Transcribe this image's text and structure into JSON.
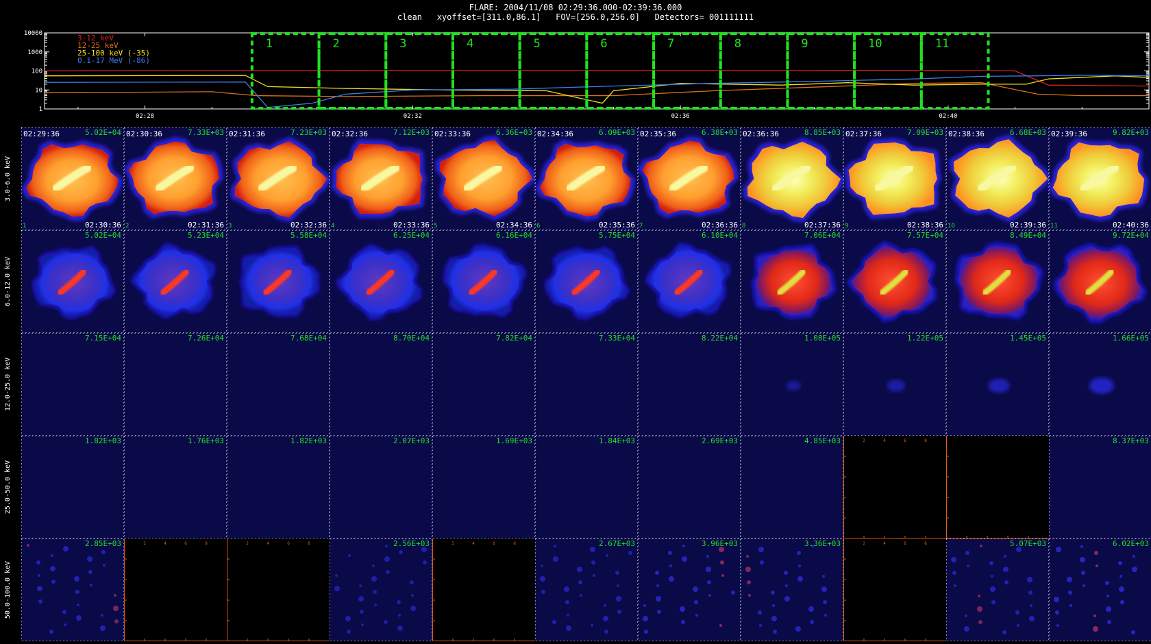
{
  "header": {
    "line1": "FLARE: 2004/11/08 02:29:36.000-02:39:36.000",
    "line2": "clean   xyoffset=[311.0,86.1]   FOV=[256.0,256.0]   Detectors= 001111111"
  },
  "colors": {
    "band1": "#e0201c",
    "band2": "#e07018",
    "band3": "#f0e020",
    "band4": "#3c7ce8",
    "interval_box": "#22e022",
    "count_label": "#22e022",
    "empty_axis": "#e05a10",
    "grid_tick": "#ffffff"
  },
  "chart_data": [
    {
      "type": "line",
      "yscale": "log",
      "ylim": [
        1,
        10000
      ],
      "y_ticks": [
        "10000",
        "1000",
        "100",
        "10",
        "1"
      ],
      "x_ticks": [
        "02:28",
        "02:32",
        "02:36",
        "02:40"
      ],
      "x_range": [
        "02:26:30",
        "02:43:00"
      ],
      "legend_placement": "top-left",
      "series": [
        {
          "name": "3-12 keV",
          "color": "#e0201c",
          "t": [
            "02:26:30",
            "02:29:36",
            "02:32:00",
            "02:36:00",
            "02:40:30",
            "02:41:00",
            "02:41:30",
            "02:43:00"
          ],
          "values": [
            100,
            103,
            104,
            104,
            105,
            100,
            18,
            16
          ]
        },
        {
          "name": "12-25 keV",
          "color": "#e07018",
          "t": [
            "02:26:30",
            "02:29:00",
            "02:29:40",
            "02:31:00",
            "02:33:00",
            "02:35:00",
            "02:36:30",
            "02:38:00",
            "02:39:30",
            "02:40:30",
            "02:41:20",
            "02:42:00",
            "02:43:00"
          ],
          "values": [
            7,
            8,
            5,
            4.5,
            5,
            5,
            9,
            14,
            22,
            24,
            6,
            5,
            5
          ]
        },
        {
          "name": "25-100 keV (-35)",
          "color": "#f0e020",
          "t": [
            "02:26:30",
            "02:29:30",
            "02:29:50",
            "02:31:00",
            "02:32:30",
            "02:34:00",
            "02:34:50",
            "02:35:00",
            "02:36:00",
            "02:37:30",
            "02:38:30",
            "02:39:30",
            "02:40:30",
            "02:41:10",
            "02:41:30",
            "02:42:30",
            "02:43:00"
          ],
          "values": [
            55,
            58,
            15,
            12,
            10,
            9,
            2,
            9,
            22,
            18,
            24,
            18,
            20,
            20,
            38,
            55,
            45
          ]
        },
        {
          "name": "0.1-17 MeV (-86)",
          "color": "#3c7ce8",
          "t": [
            "02:26:30",
            "02:29:30",
            "02:29:50",
            "02:30:30",
            "02:31:00",
            "02:32:00",
            "02:33:30",
            "02:35:00",
            "02:36:30",
            "02:38:00",
            "02:39:30",
            "02:40:30",
            "02:41:20",
            "02:42:00",
            "02:43:00"
          ],
          "values": [
            25,
            26,
            1.2,
            2,
            6,
            10,
            11,
            16,
            22,
            28,
            38,
            52,
            55,
            60,
            55
          ]
        }
      ],
      "intervals": [
        "1",
        "2",
        "3",
        "4",
        "5",
        "6",
        "7",
        "8",
        "9",
        "10",
        "11"
      ]
    },
    {
      "type": "heatmap",
      "rows": [
        "3.0-6.0 keV",
        "6.0-12.0 keV",
        "12.0-25.0 keV",
        "25.0-50.0 keV",
        "50.0-100.0 keV"
      ],
      "start_times": [
        "02:29:36",
        "02:30:36",
        "02:31:36",
        "02:32:36",
        "02:33:36",
        "02:34:36",
        "02:35:36",
        "02:36:36",
        "02:37:36",
        "02:38:36",
        "02:39:36"
      ],
      "end_times": [
        "02:30:36",
        "02:31:36",
        "02:32:36",
        "02:33:36",
        "02:34:36",
        "02:35:36",
        "02:36:36",
        "02:37:36",
        "02:38:36",
        "02:39:36",
        "02:40:36"
      ],
      "interval_numbers": [
        "1",
        "2",
        "3",
        "4",
        "5",
        "6",
        "7",
        "8",
        "9",
        "10",
        "11"
      ],
      "max_values": [
        [
          "5.02E+04",
          "7.33E+03",
          "7.23E+03",
          "7.12E+03",
          "6.36E+03",
          "6.09E+03",
          "6.38E+03",
          "8.85E+03",
          "7.09E+03",
          "6.68E+03",
          "9.82E+03"
        ],
        [
          "5.02E+04",
          "5.23E+04",
          "5.58E+04",
          "6.25E+04",
          "6.16E+04",
          "5.75E+04",
          "6.10E+04",
          "7.06E+04",
          "7.57E+04",
          "8.49E+04",
          "9.72E+04"
        ],
        [
          "7.15E+04",
          "7.26E+04",
          "7.68E+04",
          "8.70E+04",
          "7.82E+04",
          "7.33E+04",
          "8.22E+04",
          "1.08E+05",
          "1.22E+05",
          "1.45E+05",
          "1.66E+05"
        ],
        [
          "1.82E+03",
          "1.76E+03",
          "1.82E+03",
          "2.07E+03",
          "1.69E+03",
          "1.84E+03",
          "2.69E+03",
          "4.85E+03",
          null,
          null,
          "8.37E+03"
        ],
        [
          "2.85E+03",
          null,
          null,
          "2.56E+03",
          null,
          "2.67E+03",
          "3.96E+03",
          "3.36E+03",
          null,
          "5.07E+03",
          "6.02E+03"
        ]
      ],
      "source_brightness": [
        [
          0.85,
          0.85,
          0.85,
          0.86,
          0.87,
          0.86,
          0.87,
          0.92,
          0.97,
          1.0,
          1.0
        ],
        [
          0.45,
          0.45,
          0.46,
          0.5,
          0.5,
          0.48,
          0.5,
          0.65,
          0.72,
          0.8,
          0.85
        ],
        [
          0,
          0,
          0,
          0,
          0,
          0,
          0,
          0.08,
          0.12,
          0.16,
          0.2
        ],
        [
          0,
          0,
          0,
          0,
          0,
          0,
          0,
          0,
          0,
          0,
          0
        ],
        [
          0.25,
          0,
          0,
          0.15,
          0,
          0.2,
          0.3,
          0.28,
          0,
          0.25,
          0.35
        ]
      ],
      "empty_axis_ticks": [
        "2",
        "4",
        "6",
        "8"
      ]
    }
  ]
}
